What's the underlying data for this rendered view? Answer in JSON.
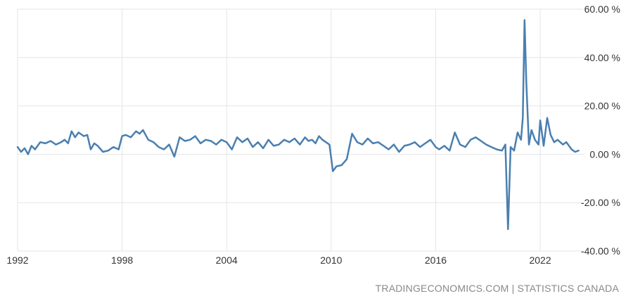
{
  "source_text": "TRADINGECONOMICS.COM | STATISTICS CANADA",
  "chart_data": {
    "type": "line",
    "title": "",
    "xlabel": "",
    "ylabel": "",
    "xlim": [
      1992,
      2024.5
    ],
    "ylim": [
      -40,
      60
    ],
    "y_ticks": [
      60,
      40,
      20,
      0,
      -20,
      -40
    ],
    "y_tick_labels": [
      "60.00 %",
      "40.00 %",
      "20.00 %",
      "0.00 %",
      "-20.00 %",
      "-40.00 %"
    ],
    "x_ticks": [
      1992,
      1998,
      2004,
      2010,
      2016,
      2022
    ],
    "x_tick_labels": [
      "1992",
      "1998",
      "2004",
      "2010",
      "2016",
      "2022"
    ],
    "grid": true,
    "line_color": "#4a7fb0",
    "series": [
      {
        "x": [
          1992.0,
          1992.2,
          1992.4,
          1992.6,
          1992.8,
          1993.0,
          1993.3,
          1993.6,
          1993.9,
          1994.2,
          1994.5,
          1994.7,
          1994.9,
          1995.1,
          1995.3,
          1995.5,
          1995.8,
          1996.0,
          1996.2,
          1996.4,
          1996.6,
          1996.9,
          1997.2,
          1997.5,
          1997.8,
          1998.0,
          1998.2,
          1998.5,
          1998.8,
          1999.0,
          1999.2,
          1999.5,
          1999.8,
          2000.1,
          2000.4,
          2000.7,
          2001.0,
          2001.3,
          2001.6,
          2001.9,
          2002.2,
          2002.5,
          2002.8,
          2003.1,
          2003.4,
          2003.7,
          2004.0,
          2004.3,
          2004.6,
          2004.9,
          2005.2,
          2005.5,
          2005.8,
          2006.1,
          2006.4,
          2006.7,
          2007.0,
          2007.3,
          2007.6,
          2007.9,
          2008.2,
          2008.5,
          2008.7,
          2008.9,
          2009.1,
          2009.3,
          2009.5,
          2009.7,
          2009.9,
          2010.1,
          2010.3,
          2010.6,
          2010.9,
          2011.2,
          2011.5,
          2011.8,
          2012.1,
          2012.4,
          2012.7,
          2013.0,
          2013.3,
          2013.6,
          2013.9,
          2014.2,
          2014.5,
          2014.8,
          2015.1,
          2015.4,
          2015.7,
          2016.0,
          2016.2,
          2016.5,
          2016.8,
          2017.1,
          2017.4,
          2017.7,
          2018.0,
          2018.3,
          2018.6,
          2018.9,
          2019.2,
          2019.5,
          2019.8,
          2020.0,
          2020.15,
          2020.3,
          2020.5,
          2020.7,
          2020.9,
          2021.0,
          2021.1,
          2021.2,
          2021.35,
          2021.5,
          2021.7,
          2021.9,
          2022.0,
          2022.2,
          2022.4,
          2022.6,
          2022.8,
          2023.0,
          2023.3,
          2023.5,
          2023.8,
          2024.0,
          2024.2
        ],
        "y": [
          3.0,
          1.0,
          2.5,
          0.0,
          3.5,
          2.0,
          5.0,
          4.5,
          5.5,
          4.0,
          5.0,
          6.0,
          4.5,
          9.5,
          7.0,
          9.0,
          7.5,
          8.0,
          2.0,
          4.5,
          3.5,
          1.0,
          1.5,
          3.0,
          2.0,
          7.5,
          8.0,
          7.0,
          9.5,
          8.5,
          10.0,
          6.0,
          5.0,
          3.0,
          2.0,
          4.0,
          -1.0,
          7.0,
          5.5,
          6.0,
          7.5,
          4.5,
          6.0,
          5.5,
          4.0,
          6.0,
          5.0,
          2.0,
          7.0,
          5.0,
          6.5,
          3.0,
          5.0,
          2.5,
          6.0,
          3.5,
          4.0,
          6.0,
          5.0,
          6.5,
          4.0,
          7.0,
          5.5,
          6.0,
          4.5,
          7.5,
          6.0,
          5.0,
          4.0,
          -7.0,
          -5.0,
          -4.5,
          -2.0,
          8.5,
          5.0,
          4.0,
          6.5,
          4.5,
          5.0,
          3.5,
          2.0,
          4.0,
          1.0,
          3.5,
          4.0,
          5.0,
          3.0,
          4.5,
          6.0,
          3.0,
          2.0,
          3.5,
          1.5,
          9.0,
          4.0,
          3.0,
          6.0,
          7.0,
          5.5,
          4.0,
          3.0,
          2.0,
          1.5,
          4.0,
          -31.0,
          3.0,
          1.5,
          9.0,
          6.0,
          15.0,
          55.5,
          30.0,
          4.0,
          10.0,
          6.0,
          4.0,
          14.0,
          3.5,
          15.0,
          8.0,
          5.0,
          6.0,
          4.0,
          5.0,
          2.0,
          1.0,
          1.5
        ]
      }
    ]
  }
}
